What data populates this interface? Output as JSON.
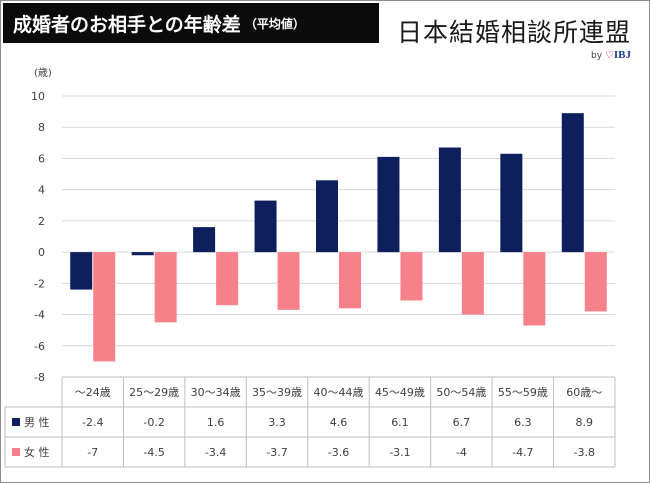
{
  "header": {
    "title": "成婚者のお相手との年齢差",
    "subtitle": "（平均値）",
    "brand": "日本結婚相談所連盟",
    "brand_by": "by",
    "brand_ibj": "IBJ"
  },
  "colors": {
    "male": "#0d1f5c",
    "female": "#f7818a",
    "grid": "#d9d9d9",
    "axis_text": "#404040"
  },
  "chart_data": {
    "type": "bar",
    "yunit": "(歳)",
    "ylim": [
      -8,
      10
    ],
    "yticks": [
      -8,
      -6,
      -4,
      -2,
      0,
      2,
      4,
      6,
      8,
      10
    ],
    "categories": [
      "～24歳",
      "25～29歳",
      "30～34歳",
      "35～39歳",
      "40～44歳",
      "45～49歳",
      "50～54歳",
      "55～59歳",
      "60歳～"
    ],
    "series": [
      {
        "name": "男 性",
        "color": "#0d1f5c",
        "values": [
          -2.4,
          -0.2,
          1.6,
          3.3,
          4.6,
          6.1,
          6.7,
          6.3,
          8.9
        ]
      },
      {
        "name": "女 性",
        "color": "#f7818a",
        "values": [
          -7,
          -4.5,
          -3.4,
          -3.7,
          -3.6,
          -3.1,
          -4,
          -4.7,
          -3.8
        ]
      }
    ],
    "grid": true,
    "data_table": true
  }
}
